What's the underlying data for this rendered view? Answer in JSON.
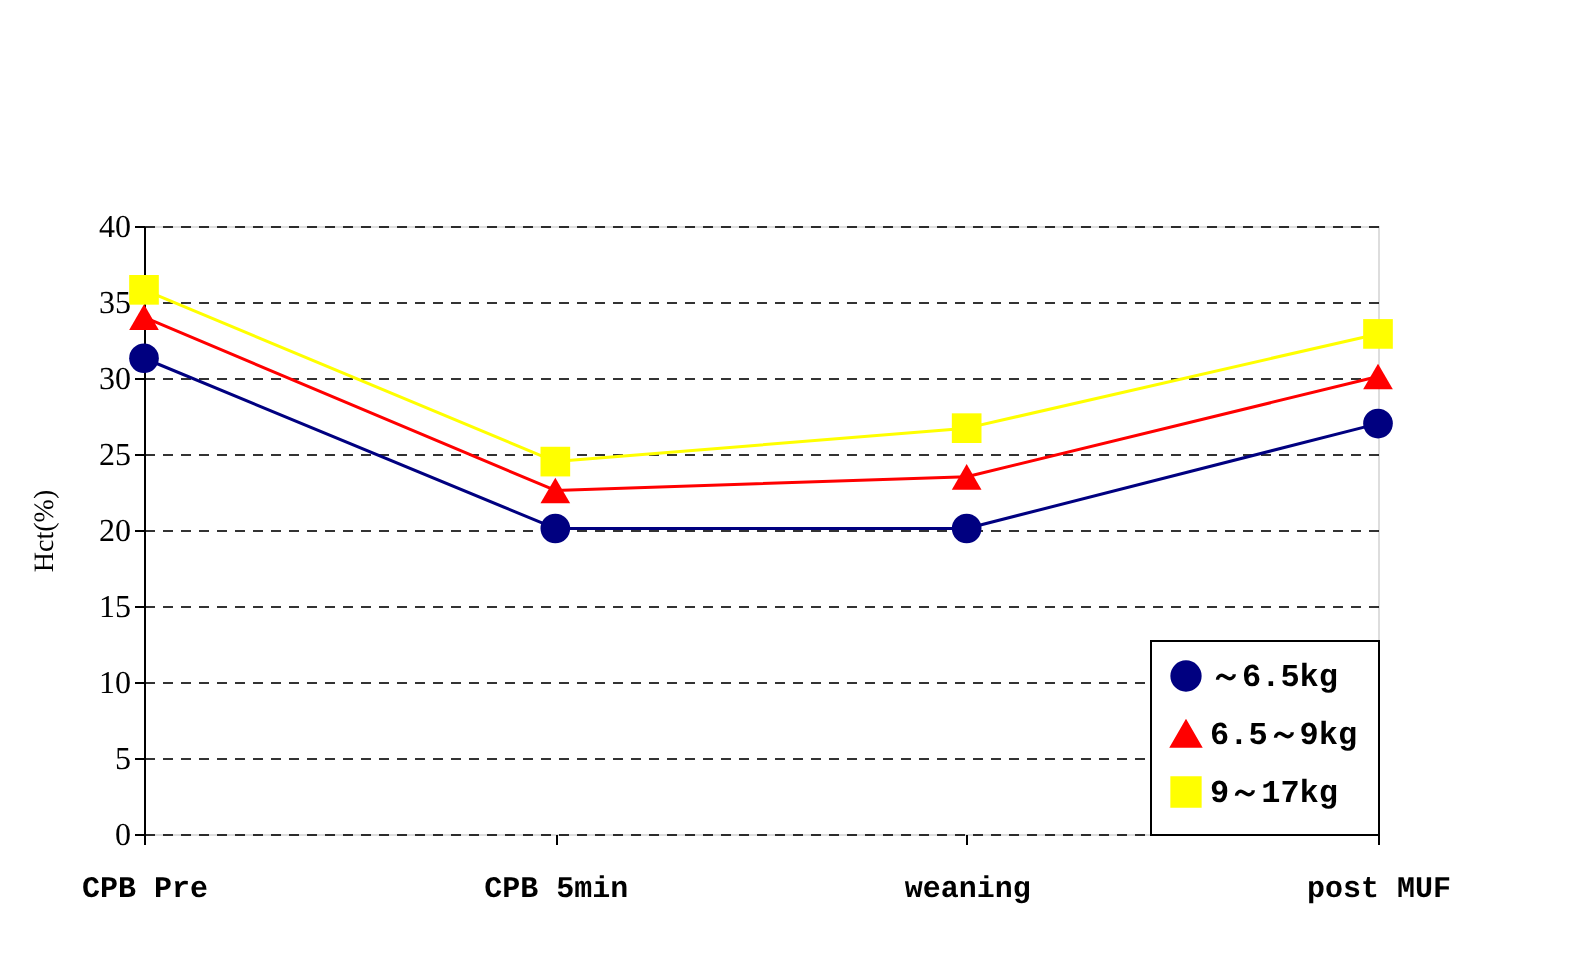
{
  "chart_data": {
    "type": "line",
    "ylabel": "Hct(%)",
    "categories": [
      "CPB Pre",
      "CPB 5min",
      "weaning",
      "post MUF"
    ],
    "series": [
      {
        "name": "～6.5kg",
        "color": "#000080",
        "marker": "circle",
        "values": [
          31.3,
          20.1,
          20.1,
          27.0
        ]
      },
      {
        "name": "6.5～9kg",
        "color": "#ff0000",
        "marker": "triangle",
        "values": [
          34.0,
          22.6,
          23.5,
          30.1
        ]
      },
      {
        "name": "9～17kg",
        "color": "#ffff00",
        "marker": "square",
        "values": [
          35.8,
          24.5,
          26.7,
          32.9
        ]
      }
    ],
    "ylim": [
      0,
      40
    ],
    "yticks": [
      0,
      5,
      10,
      15,
      20,
      25,
      30,
      35,
      40
    ],
    "grid": "y",
    "legend": "bottom right",
    "line_style": "solid"
  }
}
